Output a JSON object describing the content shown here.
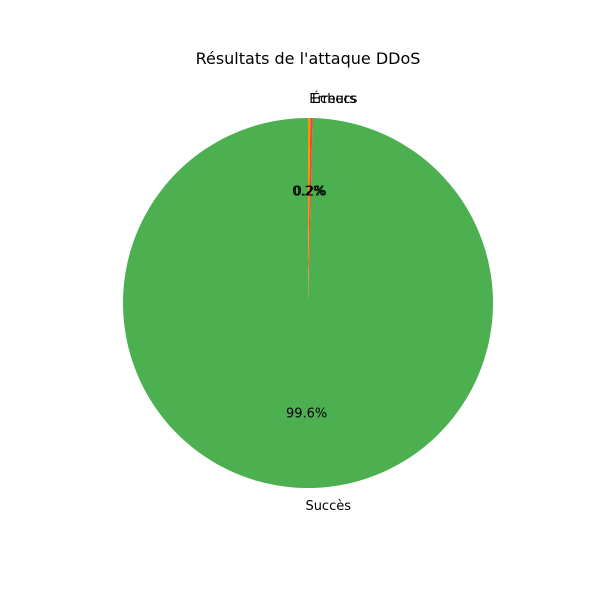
{
  "chart_data": {
    "type": "pie",
    "title": "Résultats de l'attaque DDoS",
    "start_angle_deg": 90,
    "direction": "counterclockwise",
    "slices": [
      {
        "label": "Succès",
        "value": 99.6,
        "pct_label": "99.6%",
        "color": "#4caf50"
      },
      {
        "label": "Échecs",
        "value": 0.2,
        "pct_label": "0.2%",
        "color": "#f44336"
      },
      {
        "label": "Erreurs",
        "value": 0.2,
        "pct_label": "0.2%",
        "color": "#ff9800"
      }
    ]
  }
}
